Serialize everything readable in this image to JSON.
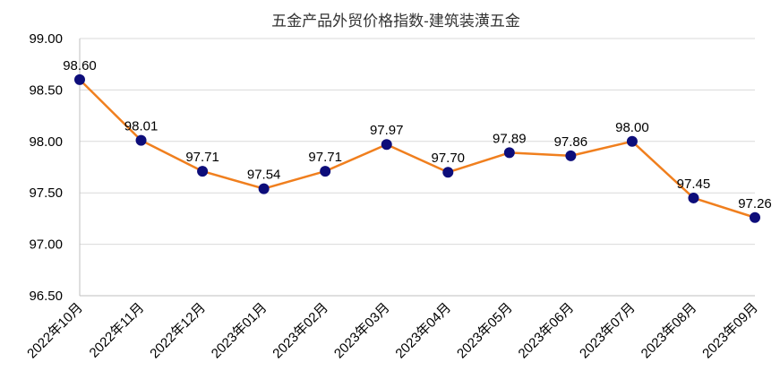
{
  "chart_data": {
    "type": "line",
    "title": "五金产品外贸价格指数-建筑装潢五金",
    "categories": [
      "2022年10月",
      "2022年11月",
      "2022年12月",
      "2023年01月",
      "2023年02月",
      "2023年03月",
      "2023年04月",
      "2023年05月",
      "2023年06月",
      "2023年07月",
      "2023年08月",
      "2023年09月"
    ],
    "series": [
      {
        "values": [
          98.6,
          98.01,
          97.71,
          97.54,
          97.71,
          97.97,
          97.7,
          97.89,
          97.86,
          98.0,
          97.45,
          97.26
        ]
      }
    ],
    "ylim": [
      96.5,
      99.0
    ],
    "yticks": [
      96.5,
      97.0,
      97.5,
      98.0,
      98.5,
      99.0
    ],
    "ytick_labels": [
      "96.50",
      "97.00",
      "97.50",
      "98.00",
      "98.50",
      "99.00"
    ],
    "data_labels": [
      "98.60",
      "98.01",
      "97.71",
      "97.54",
      "97.71",
      "97.97",
      "97.70",
      "97.89",
      "97.86",
      "98.00",
      "97.45",
      "97.26"
    ],
    "grid": "horizontal",
    "legend": "none",
    "colors": {
      "line": "#f07f1e",
      "marker": "#0d0d7a",
      "grid": "#d9d9d9",
      "axis": "#bfbfbf"
    }
  }
}
